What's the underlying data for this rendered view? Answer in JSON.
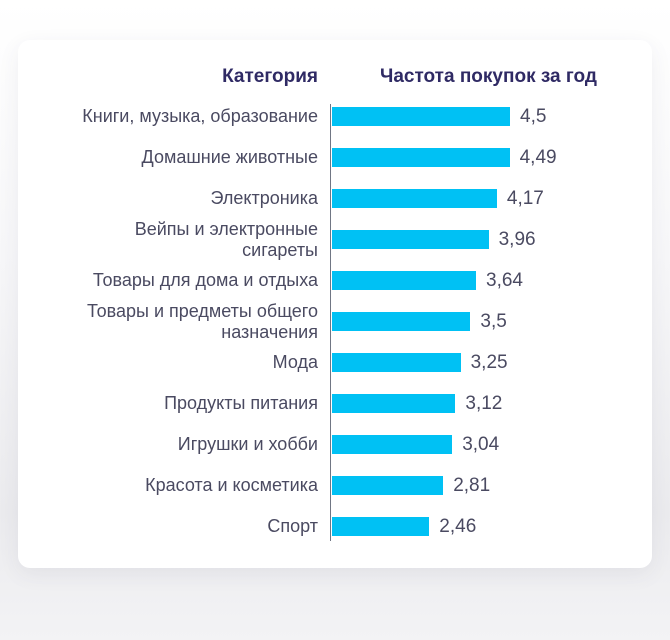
{
  "page": {
    "background_top": "#ffffff",
    "background_bottom": "#ebebee",
    "card_color": "#ffffff"
  },
  "chart_data": {
    "type": "bar",
    "orientation": "horizontal",
    "column_headers": {
      "category": "Категория",
      "value": "Частота покупок за год"
    },
    "categories": [
      "Книги, музыка, образование",
      "Домашние животные",
      "Электроника",
      "Вейпы и электронные\nсигареты",
      "Товары для дома и отдыха",
      "Товары и предметы общего\nназначения",
      "Мода",
      "Продукты питания",
      "Игрушки и хобби",
      "Красота и косметика",
      "Спорт"
    ],
    "values": [
      4.5,
      4.49,
      4.17,
      3.96,
      3.64,
      3.5,
      3.25,
      3.12,
      3.04,
      2.81,
      2.46
    ],
    "value_labels": [
      "4,5",
      "4,49",
      "4,17",
      "3,96",
      "3,64",
      "3,5",
      "3,25",
      "3,12",
      "3,04",
      "2,81",
      "2,46"
    ],
    "xlim": [
      0,
      4.5
    ],
    "grid": false,
    "legend": false,
    "bar_color": "#00C1F4",
    "label_color": "#4A4A61",
    "header_color": "#2F2A64",
    "axis_line_color": "#707684"
  }
}
